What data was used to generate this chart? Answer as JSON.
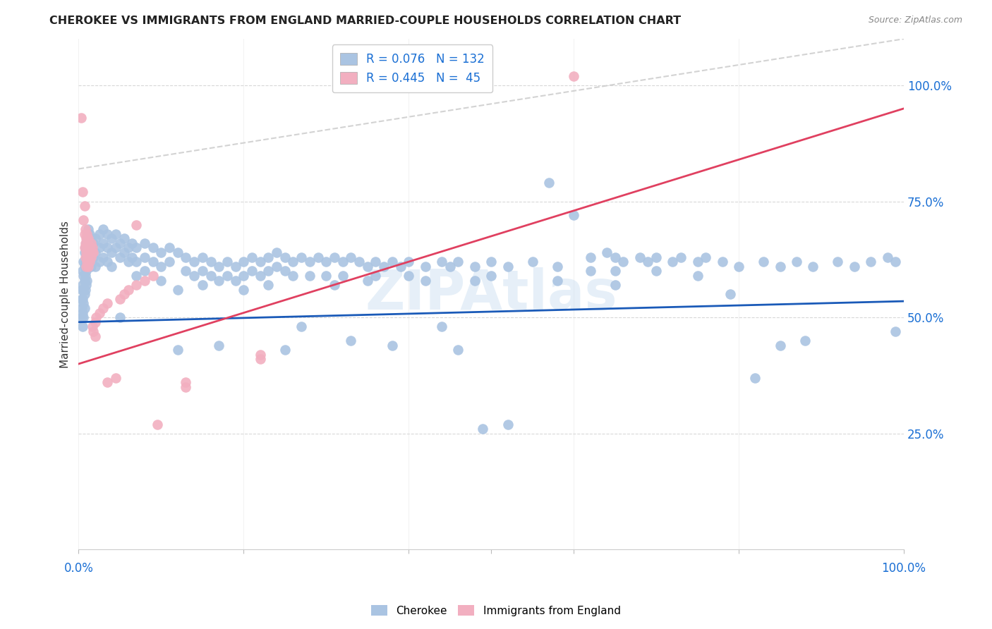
{
  "title": "CHEROKEE VS IMMIGRANTS FROM ENGLAND MARRIED-COUPLE HOUSEHOLDS CORRELATION CHART",
  "source": "Source: ZipAtlas.com",
  "ylabel": "Married-couple Households",
  "watermark": "ZIPAtlas",
  "legend_R_blue": "0.076",
  "legend_N_blue": "132",
  "legend_R_pink": "0.445",
  "legend_N_pink": "45",
  "blue_color": "#aac4e2",
  "pink_color": "#f2afc0",
  "line_blue": "#1a5ab8",
  "line_pink": "#e04060",
  "line_dashed_color": "#c8c8c8",
  "text_blue": "#1a6fd4",
  "background": "#ffffff",
  "grid_color": "#d8d8d8",
  "blue_line_x": [
    0.0,
    1.0
  ],
  "blue_line_y": [
    0.49,
    0.535
  ],
  "pink_line_x": [
    0.0,
    1.0
  ],
  "pink_line_y": [
    0.4,
    0.95
  ],
  "dashed_line_x": [
    0.0,
    1.0
  ],
  "dashed_line_y": [
    0.82,
    1.1
  ],
  "xmin": 0.0,
  "xmax": 1.0,
  "ymin": 0.0,
  "ymax": 1.1,
  "ytick_positions": [
    0.0,
    0.25,
    0.5,
    0.75,
    1.0
  ],
  "ytick_labels": [
    "",
    "25.0%",
    "50.0%",
    "75.0%",
    "100.0%"
  ],
  "blue_scatter": [
    [
      0.004,
      0.56
    ],
    [
      0.004,
      0.54
    ],
    [
      0.004,
      0.52
    ],
    [
      0.004,
      0.5
    ],
    [
      0.005,
      0.6
    ],
    [
      0.005,
      0.57
    ],
    [
      0.005,
      0.54
    ],
    [
      0.005,
      0.51
    ],
    [
      0.005,
      0.48
    ],
    [
      0.006,
      0.62
    ],
    [
      0.006,
      0.59
    ],
    [
      0.006,
      0.56
    ],
    [
      0.006,
      0.53
    ],
    [
      0.006,
      0.5
    ],
    [
      0.007,
      0.64
    ],
    [
      0.007,
      0.61
    ],
    [
      0.007,
      0.58
    ],
    [
      0.007,
      0.55
    ],
    [
      0.007,
      0.52
    ],
    [
      0.008,
      0.65
    ],
    [
      0.008,
      0.62
    ],
    [
      0.008,
      0.59
    ],
    [
      0.008,
      0.56
    ],
    [
      0.009,
      0.66
    ],
    [
      0.009,
      0.63
    ],
    [
      0.009,
      0.6
    ],
    [
      0.009,
      0.57
    ],
    [
      0.01,
      0.67
    ],
    [
      0.01,
      0.64
    ],
    [
      0.01,
      0.61
    ],
    [
      0.01,
      0.58
    ],
    [
      0.011,
      0.68
    ],
    [
      0.011,
      0.65
    ],
    [
      0.011,
      0.62
    ],
    [
      0.012,
      0.69
    ],
    [
      0.012,
      0.66
    ],
    [
      0.012,
      0.63
    ],
    [
      0.013,
      0.68
    ],
    [
      0.013,
      0.65
    ],
    [
      0.015,
      0.67
    ],
    [
      0.015,
      0.64
    ],
    [
      0.015,
      0.61
    ],
    [
      0.018,
      0.66
    ],
    [
      0.018,
      0.63
    ],
    [
      0.02,
      0.67
    ],
    [
      0.02,
      0.64
    ],
    [
      0.02,
      0.61
    ],
    [
      0.025,
      0.68
    ],
    [
      0.025,
      0.65
    ],
    [
      0.025,
      0.62
    ],
    [
      0.03,
      0.69
    ],
    [
      0.03,
      0.66
    ],
    [
      0.03,
      0.63
    ],
    [
      0.035,
      0.68
    ],
    [
      0.035,
      0.65
    ],
    [
      0.035,
      0.62
    ],
    [
      0.04,
      0.67
    ],
    [
      0.04,
      0.64
    ],
    [
      0.04,
      0.61
    ],
    [
      0.045,
      0.68
    ],
    [
      0.045,
      0.65
    ],
    [
      0.05,
      0.66
    ],
    [
      0.05,
      0.63
    ],
    [
      0.05,
      0.5
    ],
    [
      0.055,
      0.67
    ],
    [
      0.055,
      0.64
    ],
    [
      0.06,
      0.65
    ],
    [
      0.06,
      0.62
    ],
    [
      0.065,
      0.66
    ],
    [
      0.065,
      0.63
    ],
    [
      0.07,
      0.65
    ],
    [
      0.07,
      0.62
    ],
    [
      0.07,
      0.59
    ],
    [
      0.08,
      0.66
    ],
    [
      0.08,
      0.63
    ],
    [
      0.08,
      0.6
    ],
    [
      0.09,
      0.65
    ],
    [
      0.09,
      0.62
    ],
    [
      0.1,
      0.64
    ],
    [
      0.1,
      0.61
    ],
    [
      0.1,
      0.58
    ],
    [
      0.11,
      0.65
    ],
    [
      0.11,
      0.62
    ],
    [
      0.12,
      0.64
    ],
    [
      0.12,
      0.56
    ],
    [
      0.12,
      0.43
    ],
    [
      0.13,
      0.63
    ],
    [
      0.13,
      0.6
    ],
    [
      0.14,
      0.62
    ],
    [
      0.14,
      0.59
    ],
    [
      0.15,
      0.63
    ],
    [
      0.15,
      0.6
    ],
    [
      0.15,
      0.57
    ],
    [
      0.16,
      0.62
    ],
    [
      0.16,
      0.59
    ],
    [
      0.17,
      0.61
    ],
    [
      0.17,
      0.58
    ],
    [
      0.17,
      0.44
    ],
    [
      0.18,
      0.62
    ],
    [
      0.18,
      0.59
    ],
    [
      0.19,
      0.61
    ],
    [
      0.19,
      0.58
    ],
    [
      0.2,
      0.62
    ],
    [
      0.2,
      0.59
    ],
    [
      0.2,
      0.56
    ],
    [
      0.21,
      0.63
    ],
    [
      0.21,
      0.6
    ],
    [
      0.22,
      0.62
    ],
    [
      0.22,
      0.59
    ],
    [
      0.23,
      0.63
    ],
    [
      0.23,
      0.6
    ],
    [
      0.23,
      0.57
    ],
    [
      0.24,
      0.64
    ],
    [
      0.24,
      0.61
    ],
    [
      0.25,
      0.63
    ],
    [
      0.25,
      0.6
    ],
    [
      0.25,
      0.43
    ],
    [
      0.26,
      0.62
    ],
    [
      0.26,
      0.59
    ],
    [
      0.27,
      0.63
    ],
    [
      0.27,
      0.48
    ],
    [
      0.28,
      0.62
    ],
    [
      0.28,
      0.59
    ],
    [
      0.29,
      0.63
    ],
    [
      0.3,
      0.62
    ],
    [
      0.3,
      0.59
    ],
    [
      0.31,
      0.63
    ],
    [
      0.31,
      0.57
    ],
    [
      0.32,
      0.62
    ],
    [
      0.32,
      0.59
    ],
    [
      0.33,
      0.63
    ],
    [
      0.33,
      0.45
    ],
    [
      0.34,
      0.62
    ],
    [
      0.35,
      0.61
    ],
    [
      0.35,
      0.58
    ],
    [
      0.36,
      0.62
    ],
    [
      0.36,
      0.59
    ],
    [
      0.37,
      0.61
    ],
    [
      0.38,
      0.62
    ],
    [
      0.38,
      0.44
    ],
    [
      0.39,
      0.61
    ],
    [
      0.4,
      0.62
    ],
    [
      0.4,
      0.59
    ],
    [
      0.42,
      0.61
    ],
    [
      0.42,
      0.58
    ],
    [
      0.44,
      0.62
    ],
    [
      0.44,
      0.48
    ],
    [
      0.45,
      0.61
    ],
    [
      0.46,
      0.62
    ],
    [
      0.46,
      0.43
    ],
    [
      0.48,
      0.61
    ],
    [
      0.48,
      0.58
    ],
    [
      0.49,
      0.26
    ],
    [
      0.5,
      0.62
    ],
    [
      0.5,
      0.59
    ],
    [
      0.52,
      0.61
    ],
    [
      0.52,
      0.27
    ],
    [
      0.55,
      0.62
    ],
    [
      0.57,
      0.79
    ],
    [
      0.58,
      0.61
    ],
    [
      0.58,
      0.58
    ],
    [
      0.6,
      0.72
    ],
    [
      0.62,
      0.63
    ],
    [
      0.62,
      0.6
    ],
    [
      0.64,
      0.64
    ],
    [
      0.65,
      0.63
    ],
    [
      0.65,
      0.6
    ],
    [
      0.65,
      0.57
    ],
    [
      0.66,
      0.62
    ],
    [
      0.68,
      0.63
    ],
    [
      0.69,
      0.62
    ],
    [
      0.7,
      0.63
    ],
    [
      0.7,
      0.6
    ],
    [
      0.72,
      0.62
    ],
    [
      0.73,
      0.63
    ],
    [
      0.75,
      0.62
    ],
    [
      0.75,
      0.59
    ],
    [
      0.76,
      0.63
    ],
    [
      0.78,
      0.62
    ],
    [
      0.79,
      0.55
    ],
    [
      0.8,
      0.61
    ],
    [
      0.82,
      0.37
    ],
    [
      0.83,
      0.62
    ],
    [
      0.85,
      0.61
    ],
    [
      0.85,
      0.44
    ],
    [
      0.87,
      0.62
    ],
    [
      0.88,
      0.45
    ],
    [
      0.89,
      0.61
    ],
    [
      0.92,
      0.62
    ],
    [
      0.94,
      0.61
    ],
    [
      0.96,
      0.62
    ],
    [
      0.98,
      0.63
    ],
    [
      0.99,
      0.62
    ],
    [
      0.99,
      0.47
    ]
  ],
  "pink_scatter": [
    [
      0.003,
      0.93
    ],
    [
      0.005,
      0.77
    ],
    [
      0.006,
      0.71
    ],
    [
      0.007,
      0.74
    ],
    [
      0.007,
      0.68
    ],
    [
      0.007,
      0.65
    ],
    [
      0.008,
      0.69
    ],
    [
      0.008,
      0.66
    ],
    [
      0.008,
      0.63
    ],
    [
      0.009,
      0.67
    ],
    [
      0.009,
      0.64
    ],
    [
      0.009,
      0.61
    ],
    [
      0.01,
      0.68
    ],
    [
      0.01,
      0.65
    ],
    [
      0.01,
      0.62
    ],
    [
      0.011,
      0.66
    ],
    [
      0.011,
      0.63
    ],
    [
      0.012,
      0.67
    ],
    [
      0.012,
      0.64
    ],
    [
      0.012,
      0.61
    ],
    [
      0.013,
      0.65
    ],
    [
      0.013,
      0.62
    ],
    [
      0.015,
      0.66
    ],
    [
      0.015,
      0.63
    ],
    [
      0.016,
      0.64
    ],
    [
      0.017,
      0.65
    ],
    [
      0.017,
      0.48
    ],
    [
      0.018,
      0.64
    ],
    [
      0.018,
      0.47
    ],
    [
      0.02,
      0.49
    ],
    [
      0.02,
      0.46
    ],
    [
      0.021,
      0.5
    ],
    [
      0.025,
      0.51
    ],
    [
      0.03,
      0.52
    ],
    [
      0.035,
      0.53
    ],
    [
      0.035,
      0.36
    ],
    [
      0.045,
      0.37
    ],
    [
      0.05,
      0.54
    ],
    [
      0.055,
      0.55
    ],
    [
      0.06,
      0.56
    ],
    [
      0.07,
      0.57
    ],
    [
      0.07,
      0.7
    ],
    [
      0.08,
      0.58
    ],
    [
      0.09,
      0.59
    ],
    [
      0.095,
      0.27
    ],
    [
      0.13,
      0.36
    ],
    [
      0.13,
      0.35
    ],
    [
      0.22,
      0.42
    ],
    [
      0.22,
      0.41
    ],
    [
      0.6,
      1.02
    ]
  ]
}
